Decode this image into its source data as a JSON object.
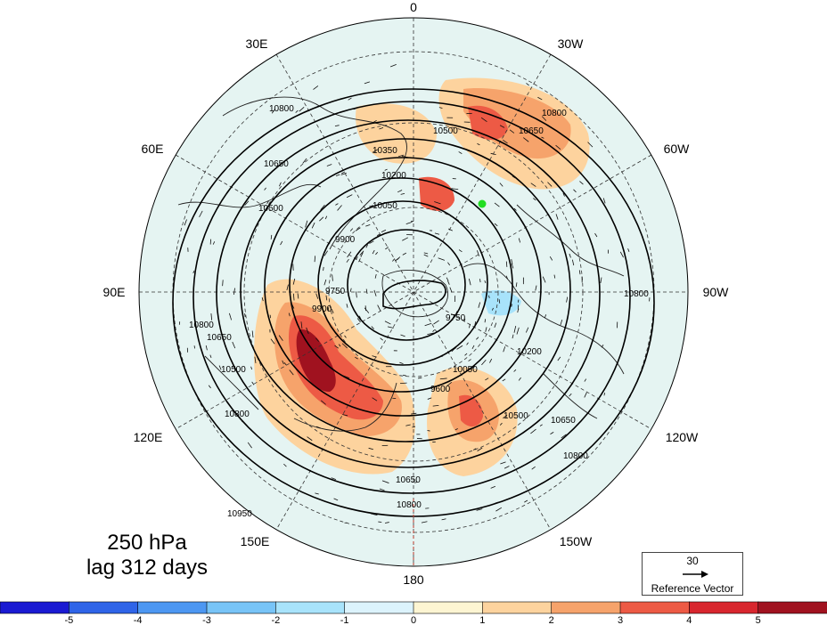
{
  "map": {
    "longitude_labels": {
      "top": "0",
      "top_left": "30E",
      "top_right": "30W",
      "upper_left": "60E",
      "upper_right": "60W",
      "left": "90E",
      "right": "90W",
      "lower_left": "120E",
      "lower_right": "120W",
      "bottom_left": "150E",
      "bottom_right": "150W",
      "bottom": "180"
    },
    "contour_labels": [
      "10800",
      "10650",
      "10500",
      "10350",
      "10200",
      "10050",
      "9900",
      "9750",
      "9600",
      "10950"
    ],
    "marker": {
      "color": "#22dd22",
      "name": "green point"
    }
  },
  "caption": {
    "level": "250 hPa",
    "lag": "lag 312 days"
  },
  "reference_vector": {
    "value": "30",
    "label": "Reference Vector"
  },
  "colorbar": {
    "ticks": [
      "-5",
      "-4",
      "-3",
      "-2",
      "-1",
      "0",
      "1",
      "2",
      "3",
      "4",
      "5"
    ],
    "colors": [
      "#1a1ad2",
      "#2f64e8",
      "#4d97f2",
      "#78c4f7",
      "#a8e3fb",
      "#dcf3fc",
      "#fdf5d2",
      "#fdd39e",
      "#f6a36b",
      "#ed5a45",
      "#d8262e",
      "#a0121f"
    ]
  }
}
